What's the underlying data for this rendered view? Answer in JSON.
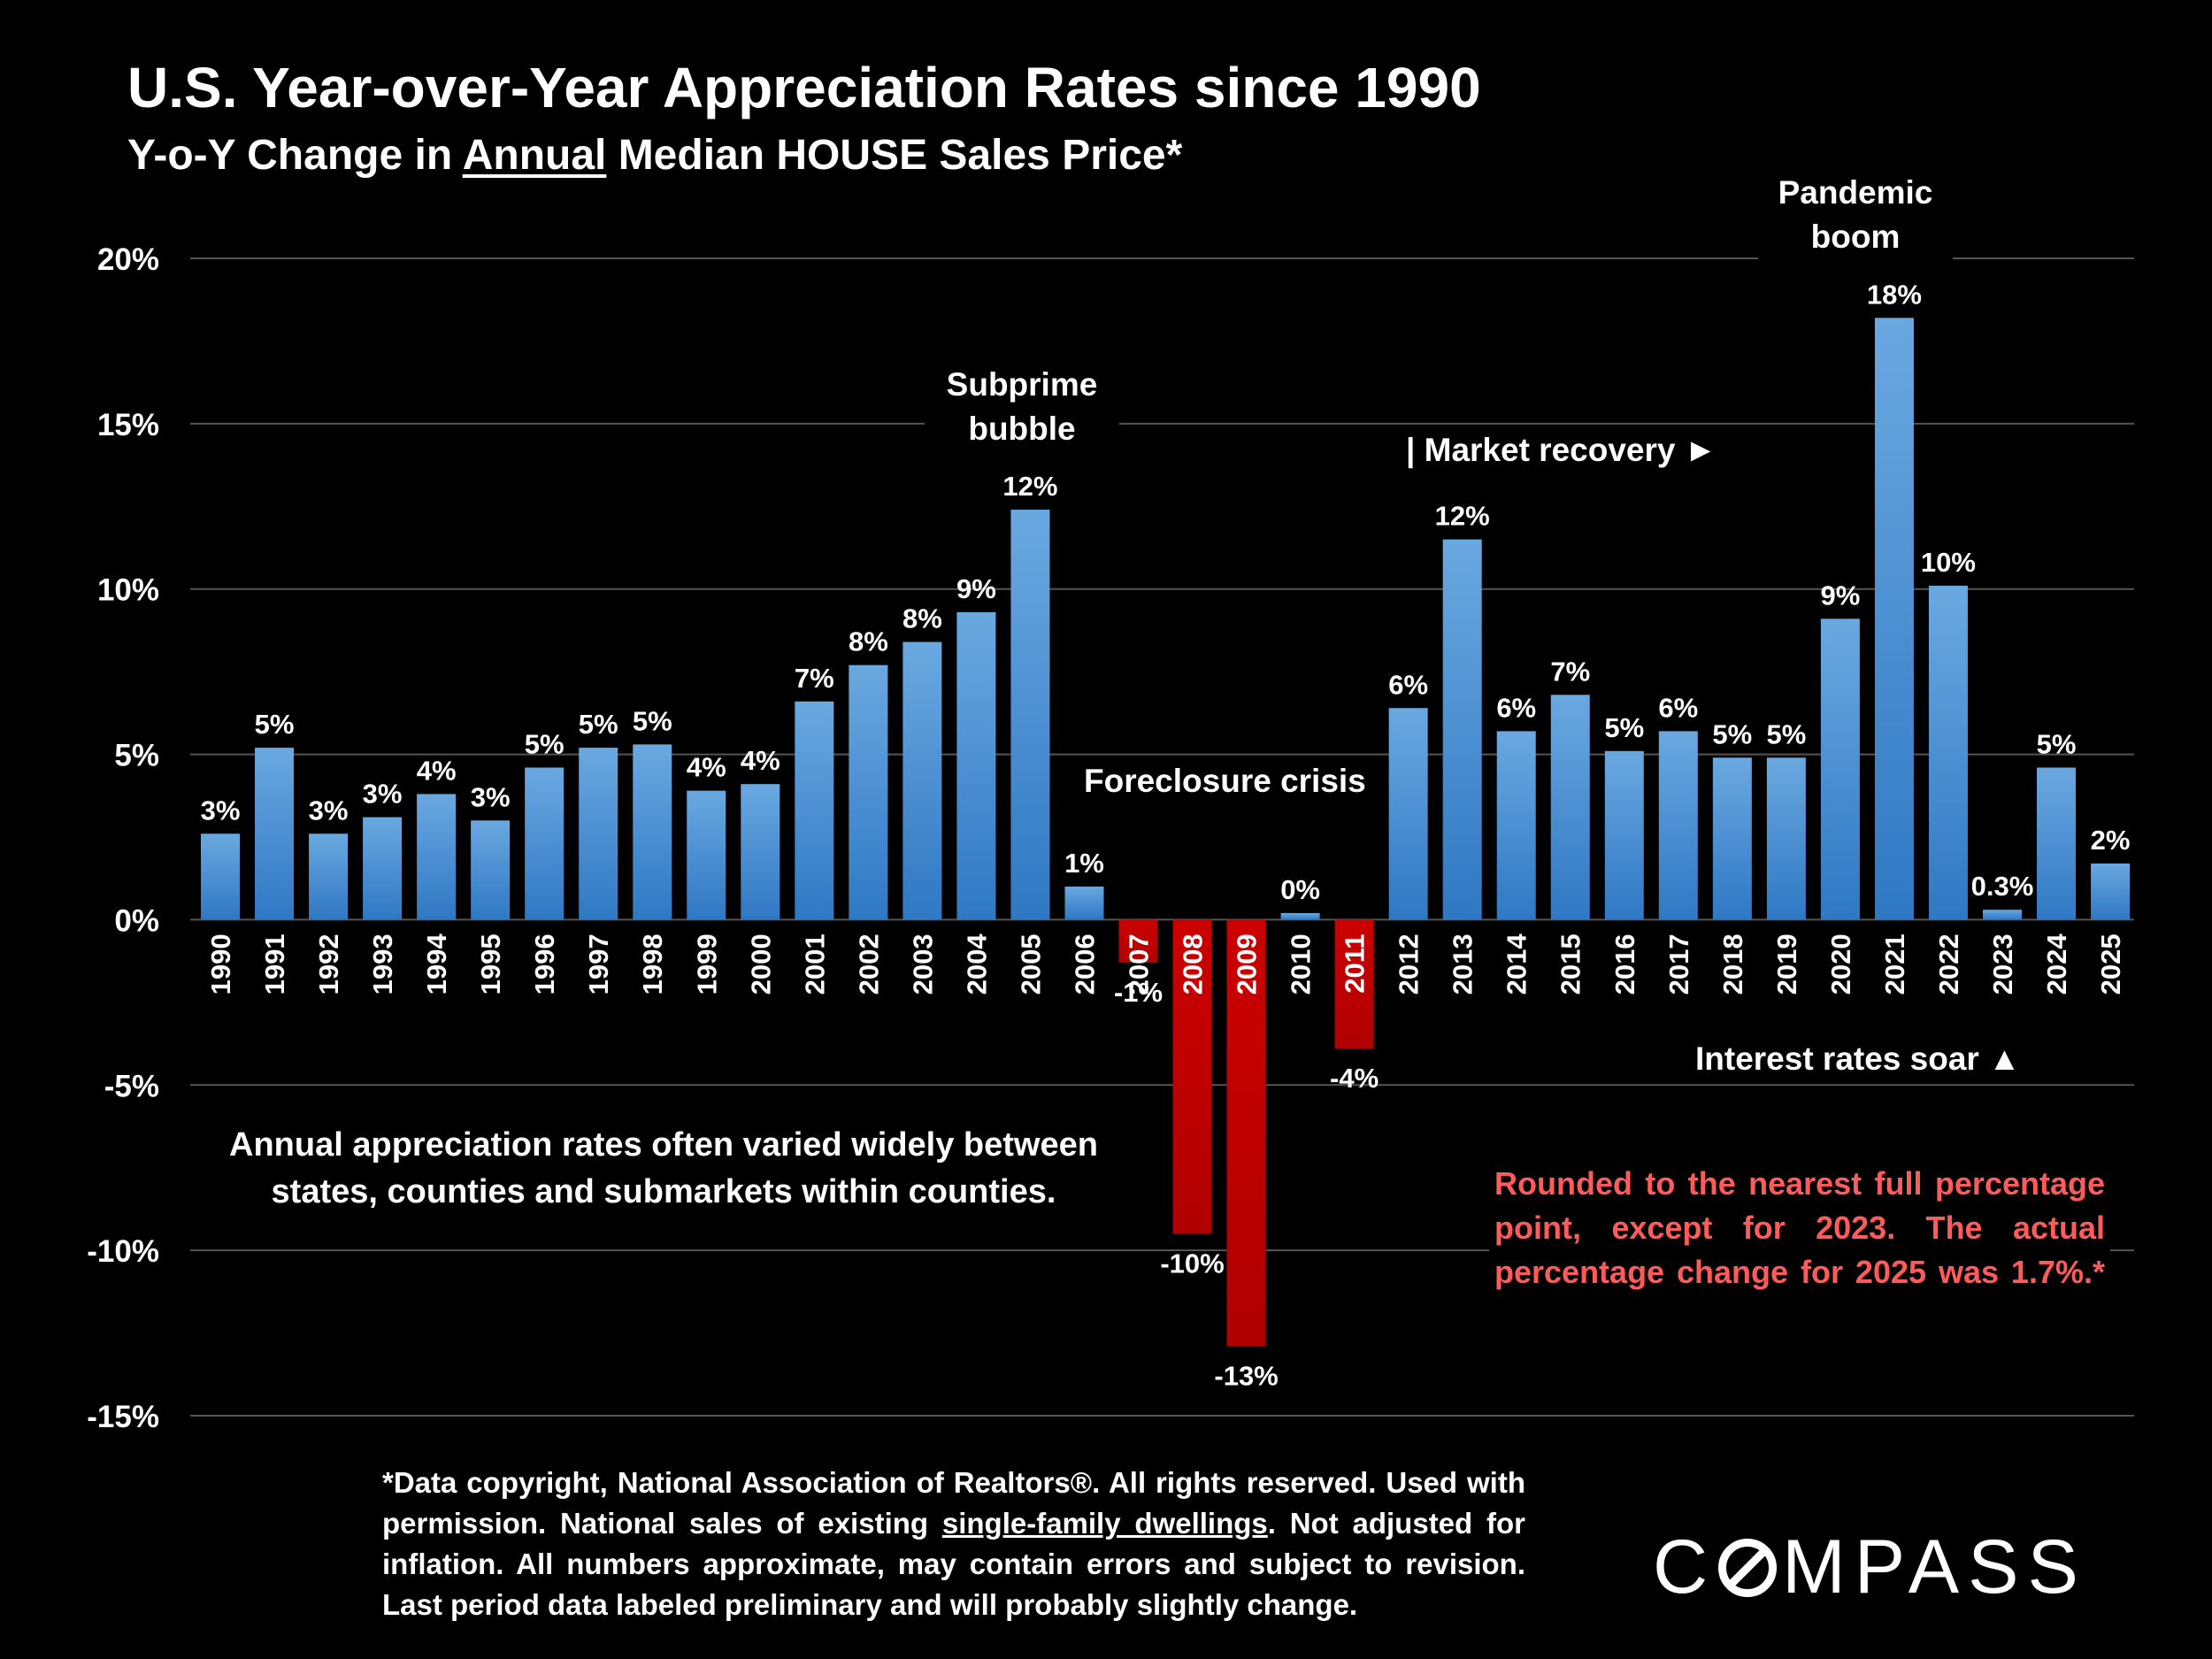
{
  "header": {
    "title": "U.S. Year-over-Year Appreciation Rates since 1990",
    "subtitle_pre": "Y-o-Y Change in ",
    "subtitle_underlined": "Annual",
    "subtitle_post": " Median HOUSE Sales Price*"
  },
  "annotations": {
    "subprime_1": "Subprime",
    "subprime_2": "bubble",
    "pandemic_1": "Pandemic",
    "pandemic_2": "boom",
    "foreclosure": "Foreclosure crisis",
    "recovery": "| Market recovery ►",
    "rates": "Interest rates soar ▲"
  },
  "notes": {
    "left": "Annual appreciation rates often varied widely between states, counties and submarkets within counties.",
    "red": "Rounded to the nearest full percentage point, except for 2023. The actual percentage change for 2025 was 1.7%.*",
    "footnote_pre": "*Data copyright, National Association of Realtors®. All rights reserved. Used with permission. National sales of existing ",
    "footnote_underlined": "single-family dwellings",
    "footnote_post": ". Not adjusted for inflation. All numbers approximate, may contain errors and subject to revision. Last period data labeled preliminary and will probably slightly change."
  },
  "logo": {
    "left": "C",
    "right": "MPASS"
  },
  "colors": {
    "positive": "#3f86cf",
    "negative": "#c00000",
    "grid": "#555555",
    "background": "#000000",
    "note_red": "#ff5b5b"
  },
  "chart_data": {
    "type": "bar",
    "title": "U.S. Year-over-Year Appreciation Rates since 1990",
    "ylim": [
      -15,
      20
    ],
    "yticks": [
      20,
      15,
      10,
      5,
      0,
      -5,
      -10,
      -15
    ],
    "ytick_labels": [
      "20%",
      "15%",
      "10%",
      "5%",
      "0%",
      "-5%",
      "-10%",
      "-15%"
    ],
    "grid": true,
    "categories": [
      "1990",
      "1991",
      "1992",
      "1993",
      "1994",
      "1995",
      "1996",
      "1997",
      "1998",
      "1999",
      "2000",
      "2001",
      "2002",
      "2003",
      "2004",
      "2005",
      "2006",
      "2007",
      "2008",
      "2009",
      "2010",
      "2011",
      "2012",
      "2013",
      "2014",
      "2015",
      "2016",
      "2017",
      "2018",
      "2019",
      "2020",
      "2021",
      "2022",
      "2023",
      "2024",
      "2025"
    ],
    "values": [
      2.6,
      5.2,
      2.6,
      3.1,
      3.8,
      3.0,
      4.6,
      5.2,
      5.3,
      3.9,
      4.1,
      6.6,
      7.7,
      8.4,
      9.3,
      12.4,
      1.0,
      -1.3,
      -9.5,
      -12.9,
      0.2,
      -3.9,
      6.4,
      11.5,
      5.7,
      6.8,
      5.1,
      5.7,
      4.9,
      4.9,
      9.1,
      18.2,
      10.1,
      0.3,
      4.6,
      1.7
    ],
    "data_labels": [
      "3%",
      "5%",
      "3%",
      "3%",
      "4%",
      "3%",
      "5%",
      "5%",
      "5%",
      "4%",
      "4%",
      "7%",
      "8%",
      "8%",
      "9%",
      "12%",
      "1%",
      "-1%",
      "-10%",
      "-13%",
      "0%",
      "-4%",
      "6%",
      "12%",
      "6%",
      "7%",
      "5%",
      "6%",
      "5%",
      "5%",
      "9%",
      "18%",
      "10%",
      "0.3%",
      "5%",
      "2%"
    ]
  }
}
